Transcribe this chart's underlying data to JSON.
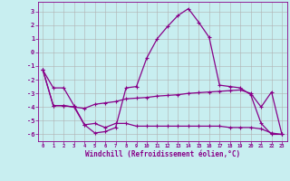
{
  "xlabel": "Windchill (Refroidissement éolien,°C)",
  "bg_color": "#c8eef0",
  "grid_color": "#b0b0b0",
  "line_color": "#880088",
  "x": [
    0,
    1,
    2,
    3,
    4,
    5,
    6,
    7,
    8,
    9,
    10,
    11,
    12,
    13,
    14,
    15,
    16,
    17,
    18,
    19,
    20,
    21,
    22,
    23
  ],
  "line_peak": [
    -1.3,
    -2.6,
    -2.6,
    -3.9,
    -5.3,
    -5.9,
    -5.8,
    -5.5,
    -2.6,
    -2.5,
    -0.4,
    1.0,
    1.9,
    2.7,
    3.2,
    2.2,
    1.1,
    -2.4,
    -2.5,
    -2.6,
    -3.1,
    -5.2,
    -6.0,
    -6.0
  ],
  "line_upper": [
    -1.3,
    -3.9,
    -3.9,
    -4.0,
    -4.1,
    -3.8,
    -3.7,
    -3.6,
    -3.4,
    -3.35,
    -3.3,
    -3.2,
    -3.15,
    -3.1,
    -3.0,
    -2.95,
    -2.9,
    -2.85,
    -2.8,
    -2.75,
    -3.0,
    -4.0,
    -2.9,
    -6.0
  ],
  "line_lower": [
    -1.3,
    -3.9,
    -3.9,
    -4.0,
    -5.3,
    -5.2,
    -5.5,
    -5.2,
    -5.2,
    -5.4,
    -5.4,
    -5.4,
    -5.4,
    -5.4,
    -5.4,
    -5.4,
    -5.4,
    -5.4,
    -5.5,
    -5.5,
    -5.5,
    -5.6,
    -5.9,
    -6.0
  ],
  "ylim": [
    -6.5,
    3.7
  ],
  "yticks": [
    3,
    2,
    1,
    0,
    -1,
    -2,
    -3,
    -4,
    -5,
    -6
  ],
  "xlim": [
    -0.5,
    23.5
  ],
  "xticks": [
    0,
    1,
    2,
    3,
    4,
    5,
    6,
    7,
    8,
    9,
    10,
    11,
    12,
    13,
    14,
    15,
    16,
    17,
    18,
    19,
    20,
    21,
    22,
    23
  ]
}
